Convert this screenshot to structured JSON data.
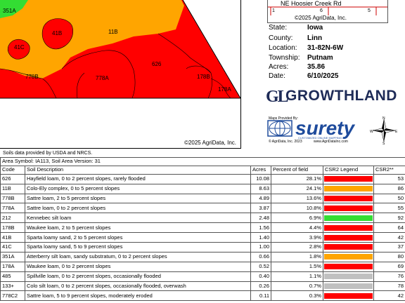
{
  "map": {
    "soil_labels": [
      {
        "id": "351A",
        "label": "351A"
      },
      {
        "id": "41B",
        "label": "41B"
      },
      {
        "id": "11B",
        "label": "11B"
      },
      {
        "id": "41C",
        "label": "41C"
      },
      {
        "id": "626",
        "label": "626"
      },
      {
        "id": "778B",
        "label": "778B"
      },
      {
        "id": "778A",
        "label": "778A"
      },
      {
        "id": "178B",
        "label": "178B"
      },
      {
        "id": "178A",
        "label": "178A"
      }
    ],
    "copyright": "©2025 AgriData, Inc.",
    "source_note": "Soils data provided by USDA and NRCS."
  },
  "locator": {
    "road": "NE Hoosier Creek Rd",
    "number_left": "1",
    "number_mid": "6",
    "number_right": "5",
    "copyright": "©2025 AgriData, Inc."
  },
  "info": [
    {
      "label": "State:",
      "value": "Iowa"
    },
    {
      "label": "County:",
      "value": "Linn"
    },
    {
      "label": "Location:",
      "value": "31-82N-6W"
    },
    {
      "label": "Township:",
      "value": "Putnam"
    },
    {
      "label": "Acres:",
      "value": "35.86"
    },
    {
      "label": "Date:",
      "value": "6/10/2025"
    }
  ],
  "logos": {
    "growthland_mark": "GL",
    "growthland": "GROWTHLAND",
    "maps_provided_by": "Maps Provided By:",
    "surety": "surety",
    "surety_tagline": "CUSTOMIZED ONLINE MAPPING",
    "surety_copy": "© AgriData, Inc. 2023",
    "surety_url": "www.AgriDataInc.com"
  },
  "compass": {
    "n": "N",
    "s": "S",
    "e": "E",
    "w": "W"
  },
  "table": {
    "area_symbol": "Area Symbol: IA113, Soil Area Version: 31",
    "headers": {
      "code": "Code",
      "description": "Soil Description",
      "acres": "Acres",
      "percent": "Percent of field",
      "legend": "CSR2 Legend",
      "csr2": "CSR2**"
    },
    "rows": [
      {
        "code": "626",
        "description": "Hayfield loam, 0 to 2 percent slopes, rarely flooded",
        "acres": "10.08",
        "percent": "28.1%",
        "color": "#ff0000",
        "csr2": "53"
      },
      {
        "code": "11B",
        "description": "Colo-Ely complex, 0 to 5 percent slopes",
        "acres": "8.63",
        "percent": "24.1%",
        "color": "#ffa500",
        "csr2": "86"
      },
      {
        "code": "778B",
        "description": "Sattre loam, 2 to 5 percent slopes",
        "acres": "4.89",
        "percent": "13.6%",
        "color": "#ff0000",
        "csr2": "50"
      },
      {
        "code": "778A",
        "description": "Sattre loam, 0 to 2 percent slopes",
        "acres": "3.87",
        "percent": "10.8%",
        "color": "#ff0000",
        "csr2": "55"
      },
      {
        "code": "212",
        "description": "Kennebec silt loam",
        "acres": "2.48",
        "percent": "6.9%",
        "color": "#33dd33",
        "csr2": "92"
      },
      {
        "code": "178B",
        "description": "Waukee loam, 2 to 5 percent slopes",
        "acres": "1.56",
        "percent": "4.4%",
        "color": "#ff0000",
        "csr2": "64"
      },
      {
        "code": "41B",
        "description": "Sparta loamy sand, 2 to 5 percent slopes",
        "acres": "1.40",
        "percent": "3.9%",
        "color": "#ff0000",
        "csr2": "42"
      },
      {
        "code": "41C",
        "description": "Sparta loamy sand, 5 to 9 percent slopes",
        "acres": "1.00",
        "percent": "2.8%",
        "color": "#ff0000",
        "csr2": "37"
      },
      {
        "code": "351A",
        "description": "Atterberry silt loam, sandy substratum, 0 to 2 percent slopes",
        "acres": "0.66",
        "percent": "1.8%",
        "color": "#ffa500",
        "csr2": "80"
      },
      {
        "code": "178A",
        "description": "Waukee loam, 0 to 2 percent slopes",
        "acres": "0.52",
        "percent": "1.5%",
        "color": "#ff0000",
        "csr2": "69"
      },
      {
        "code": "485",
        "description": "Spillville loam, 0 to 2 percent slopes, occasionally flooded",
        "acres": "0.40",
        "percent": "1.1%",
        "color": "#c0c0c0",
        "csr2": "76"
      },
      {
        "code": "133+",
        "description": "Colo silt loam, 0 to 2 percent slopes, occasionally flooded, overwash",
        "acres": "0.26",
        "percent": "0.7%",
        "color": "#c0c0c0",
        "csr2": "78"
      },
      {
        "code": "778C2",
        "description": "Sattre loam, 5 to 9 percent slopes, moderately eroded",
        "acres": "0.11",
        "percent": "0.3%",
        "color": "#ff0000",
        "csr2": "42"
      }
    ]
  }
}
